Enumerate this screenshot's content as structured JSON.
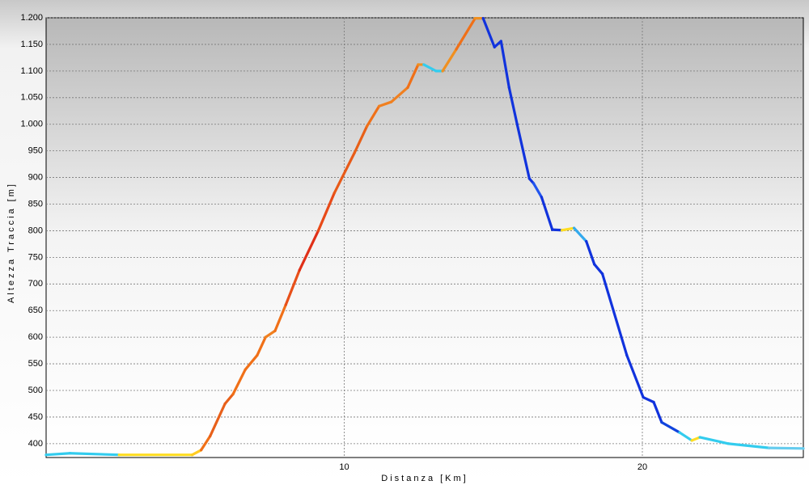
{
  "chart_data": {
    "type": "line",
    "x_label": "Distanza [Km]",
    "y_label": "Altezza Traccia [m]",
    "xlim": [
      0,
      25.4
    ],
    "ylim": [
      374,
      1200
    ],
    "xticks": [
      10,
      20
    ],
    "yticks": [
      400,
      450,
      500,
      550,
      600,
      650,
      700,
      750,
      800,
      850,
      900,
      950,
      {
        "value": 1000,
        "label": "1.000"
      },
      {
        "value": 1050,
        "label": "1.050"
      },
      {
        "value": 1100,
        "label": "1.100"
      },
      {
        "value": 1150,
        "label": "1.150"
      },
      {
        "value": 1200,
        "label": "1.200"
      }
    ],
    "grid": true,
    "series": [
      {
        "x": [
          0,
          0.8,
          2.45,
          4.9,
          5.2,
          5.5,
          6.0,
          6.27,
          6.68,
          7.08,
          7.36,
          7.68,
          8.04,
          8.5,
          9.13,
          9.67,
          10.35,
          10.76,
          11.17,
          11.58,
          12.13,
          12.48,
          12.67,
          13.08,
          13.3,
          13.76,
          14.39,
          14.66,
          15.04,
          15.26,
          15.53,
          15.8,
          16.21,
          16.35,
          16.62,
          16.98,
          17.3,
          17.71,
          18.12,
          18.39,
          18.66,
          19.48,
          20.03,
          20.38,
          20.65,
          21.25,
          21.66,
          21.93,
          22.89,
          24.25,
          25.4
        ],
        "values": [
          379,
          382,
          379,
          379,
          388,
          414,
          475,
          493,
          539,
          566,
          600,
          612,
          661,
          726,
          800,
          871,
          947,
          996,
          1034,
          1042,
          1069,
          1112,
          1112,
          1100,
          1100,
          1141,
          1199,
          1199,
          1145,
          1156,
          1069,
          1000,
          898,
          889,
          863,
          802,
          801,
          805,
          780,
          737,
          719,
          566,
          487,
          478,
          440,
          421,
          406,
          412,
          400,
          392,
          391
        ],
        "colors": [
          "#33ccee",
          "#33ccee",
          "#ffdd22",
          "#ffcc22",
          "#f07018",
          "#e8601a",
          "#e8601a",
          "#f07018",
          "#f07018",
          "#f07018",
          "#f08020",
          "#f07018",
          "#e8501a",
          "#e03018",
          "#e84a18",
          "#e85a18",
          "#e86018",
          "#f07018",
          "#f08020",
          "#f08020",
          "#f07018",
          "#f09020",
          "#33ccee",
          "#33ccee",
          "#f09020",
          "#f07018",
          "#f09020",
          "#1133dd",
          "#1133dd",
          "#1133dd",
          "#1133dd",
          "#1133dd",
          "#1133dd",
          "#2255ee",
          "#1133dd",
          "#1133dd",
          "#ffdd22",
          "#33aaee",
          "#1133dd",
          "#1133dd",
          "#1133dd",
          "#1133dd",
          "#1133dd",
          "#1133dd",
          "#1144dd",
          "#33ccee",
          "#ffdd22",
          "#33ccee",
          "#33ccee",
          "#66ccee",
          "#66ccee"
        ]
      }
    ]
  }
}
